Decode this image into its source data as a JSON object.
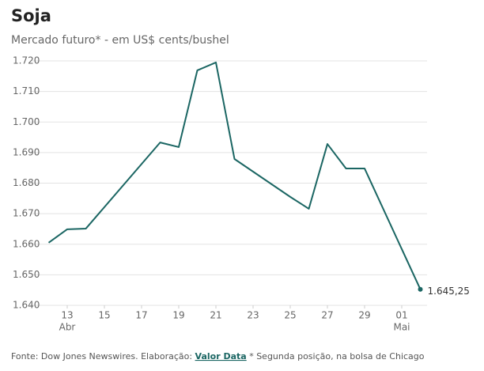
{
  "chart_data": {
    "type": "line",
    "title": "Soja",
    "subtitle": "Mercado futuro* - em US$ cents/bushel",
    "x": [
      "04-12",
      "04-13",
      "04-14",
      "04-18",
      "04-19",
      "04-20",
      "04-21",
      "04-22",
      "04-25",
      "04-26",
      "04-27",
      "04-28",
      "04-29",
      "05-02"
    ],
    "series": [
      {
        "name": "Soja",
        "color": "#1b6663",
        "values": [
          1660.5,
          1664.9,
          1665.1,
          1693.3,
          1691.8,
          1716.9,
          1719.5,
          1687.9,
          1675.5,
          1671.6,
          1692.8,
          1684.8,
          1684.8,
          1645.25
        ],
        "value_labels": [
          null,
          null,
          null,
          null,
          null,
          null,
          null,
          null,
          null,
          null,
          null,
          null,
          null,
          "1.645,25"
        ]
      }
    ],
    "xlim": [
      "04-11",
      "05-03"
    ],
    "xticks": [
      {
        "value": "04-13",
        "label": "13"
      },
      {
        "value": "04-15",
        "label": "15"
      },
      {
        "value": "04-17",
        "label": "17"
      },
      {
        "value": "04-19",
        "label": "19"
      },
      {
        "value": "04-21",
        "label": "21"
      },
      {
        "value": "04-23",
        "label": "23"
      },
      {
        "value": "04-25",
        "label": "25"
      },
      {
        "value": "04-27",
        "label": "27"
      },
      {
        "value": "04-29",
        "label": "29"
      },
      {
        "value": "05-01",
        "label": "01"
      }
    ],
    "month_labels": [
      {
        "value": "04-13",
        "label": "Abr"
      },
      {
        "value": "05-01",
        "label": "Mai"
      }
    ],
    "ylim": [
      1640,
      1720
    ],
    "yticks": [
      {
        "value": 1640,
        "label": "1.640"
      },
      {
        "value": 1650,
        "label": "1.650"
      },
      {
        "value": 1660,
        "label": "1.660"
      },
      {
        "value": 1670,
        "label": "1.670"
      },
      {
        "value": 1680,
        "label": "1.680"
      },
      {
        "value": 1690,
        "label": "1.690"
      },
      {
        "value": 1700,
        "label": "1.700"
      },
      {
        "value": 1710,
        "label": "1.710"
      },
      {
        "value": 1720,
        "label": "1.720"
      }
    ],
    "grid": true,
    "source": {
      "prefix": "Fonte: Dow Jones Newswires. Elaboração: ",
      "brand": "Valor Data",
      "note": " * Segunda posição, na bolsa de Chicago"
    }
  }
}
